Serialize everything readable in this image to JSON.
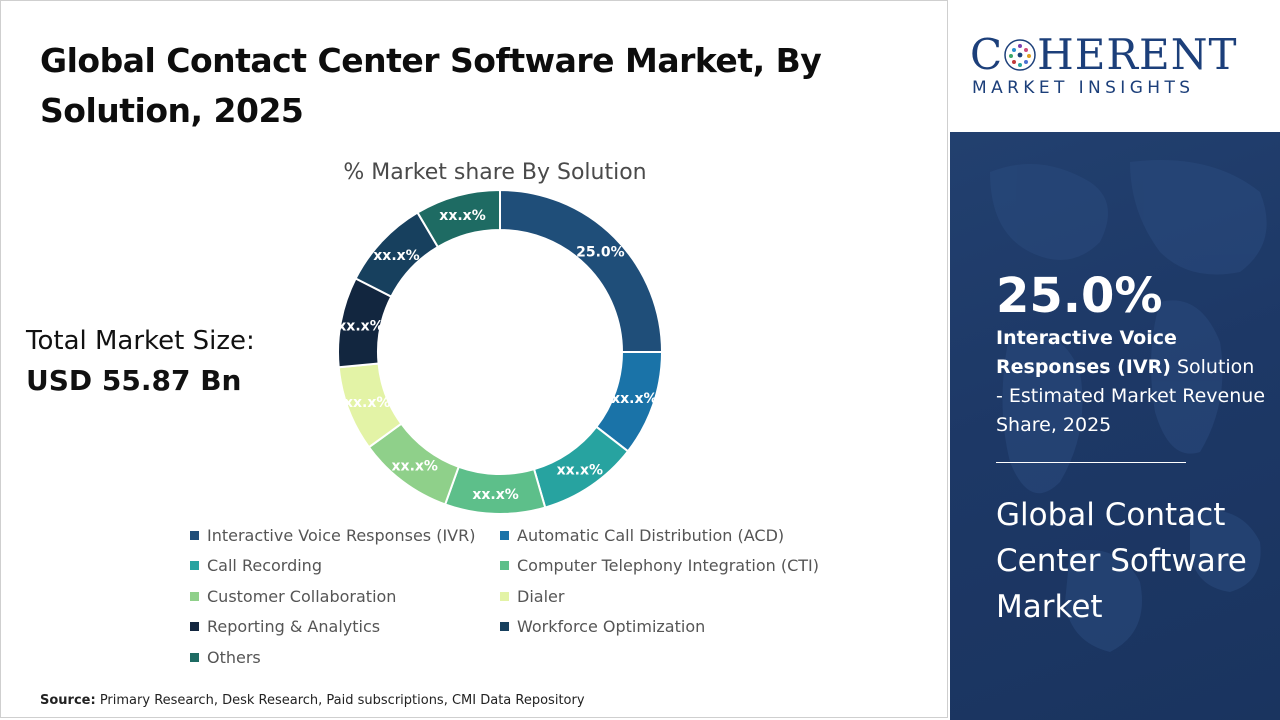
{
  "header": {
    "title": "Global Contact Center Software Market, By Solution, 2025"
  },
  "summary": {
    "total_label": "Total Market Size:",
    "total_value": "USD 55.87 Bn"
  },
  "chart_data": {
    "type": "pie",
    "donut": true,
    "title": "% Market share By Solution",
    "series": [
      {
        "name": "Interactive Voice Responses (IVR)",
        "value": 25.0,
        "label": "25.0%",
        "color": "#1f4e79"
      },
      {
        "name": "Automatic Call Distribution (ACD)",
        "value": 10.5,
        "label": "xx.x%",
        "color": "#1a73a8"
      },
      {
        "name": "Call Recording",
        "value": 10.0,
        "label": "xx.x%",
        "color": "#27a3a0"
      },
      {
        "name": "Computer Telephony Integration (CTI)",
        "value": 10.0,
        "label": "xx.x%",
        "color": "#5dbf8a"
      },
      {
        "name": "Customer Collaboration",
        "value": 9.5,
        "label": "xx.x%",
        "color": "#8fd08a"
      },
      {
        "name": "Dialer",
        "value": 8.5,
        "label": "xx.x%",
        "color": "#e3f3a6"
      },
      {
        "name": "Reporting & Analytics",
        "value": 9.0,
        "label": "xx.x%",
        "color": "#12263f"
      },
      {
        "name": "Workforce Optimization",
        "value": 9.0,
        "label": "xx.x%",
        "color": "#17405e"
      },
      {
        "name": "Others",
        "value": 8.5,
        "label": "xx.x%",
        "color": "#1e6b63"
      }
    ],
    "legend_placement": "bottom"
  },
  "brand": {
    "name_pre": "C",
    "name_post": "HERENT",
    "tagline": "MARKET INSIGHTS",
    "color": "#1c3f7a"
  },
  "highlight": {
    "value": "25.0%",
    "desc_bold": "Interactive Voice Responses (IVR)",
    "desc_rest": " Solution - Estimated Market Revenue Share, 2025",
    "market_name": "Global Contact Center Software Market"
  },
  "footer": {
    "source_label": "Source:",
    "source_text": " Primary Research, Desk Research, Paid subscriptions, CMI Data Repository"
  }
}
